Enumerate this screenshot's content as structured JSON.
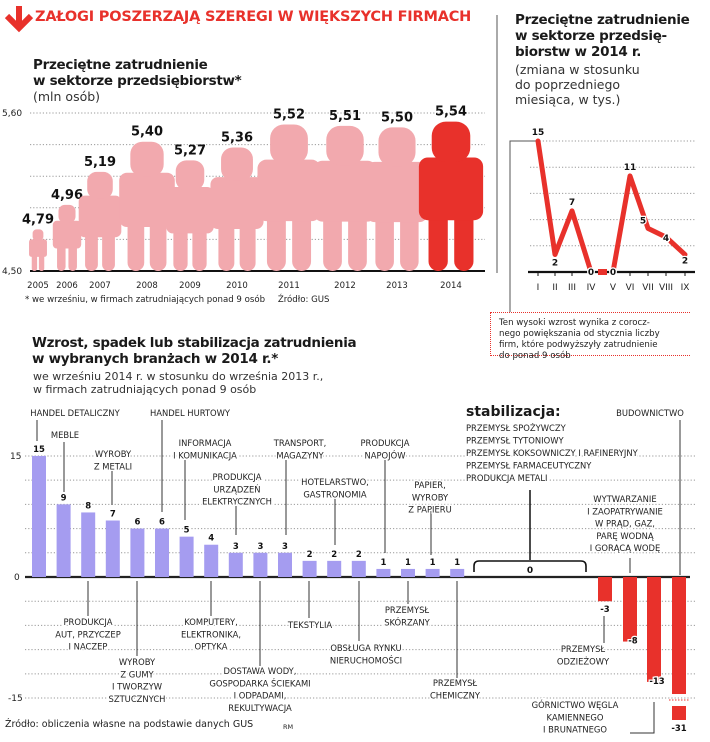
{
  "header": {
    "title": "ZAŁOGI POSZERZAJĄ SZEREGI W WIĘKSZYCH FIRMACH",
    "icon": "arrow-down-icon"
  },
  "colors": {
    "accent": "#e8312b",
    "pink": "#f2a9ae",
    "purple": "#a59cf0",
    "grid": "#999999"
  },
  "chart_data": [
    {
      "type": "bar",
      "title_lines": [
        "Przeciętne zatrudnienie",
        "w sektorze przedsiębiorstw*"
      ],
      "subtitle": "(mln osób)",
      "categories": [
        "2005",
        "2006",
        "2007",
        "2008",
        "2009",
        "2010",
        "2011",
        "2012",
        "2013",
        "2014"
      ],
      "values": [
        4.79,
        4.96,
        5.19,
        5.4,
        5.27,
        5.36,
        5.52,
        5.51,
        5.5,
        5.54
      ],
      "value_labels": [
        "4,79",
        "4,96",
        "5,19",
        "5,40",
        "5,27",
        "5,36",
        "5,52",
        "5,51",
        "5,50",
        "5,54"
      ],
      "ylim": [
        4.5,
        5.6
      ],
      "yticks": [
        "4,50",
        "5,60"
      ],
      "highlight": "2014",
      "grid": true,
      "footnote": "* we wrześniu, w firmach zatrudniających ponad 9 osób",
      "source": "Źródło: GUS"
    },
    {
      "type": "line",
      "title_lines": [
        "Przeciętne zatrudnienie",
        "w sektorze przedsię-",
        "biorstw w 2014 r."
      ],
      "subtitle_lines": [
        "(zmiana w stosunku",
        "do poprzedniego",
        "miesiąca, w tys.)"
      ],
      "categories": [
        "I",
        "II",
        "III",
        "IV",
        "V",
        "VI",
        "VII",
        "VIII",
        "IX"
      ],
      "values": [
        15,
        2,
        7,
        0,
        0,
        11,
        5,
        4,
        2
      ],
      "value_labels": [
        "15",
        "2",
        "7",
        "0",
        "0",
        "11",
        "5",
        "4",
        "2"
      ],
      "ylim": [
        0,
        15
      ],
      "grid": true,
      "annotation_lines": [
        "Ten wysoki wzrost wynika z corocz-",
        "nego powiększania od stycznia liczby",
        "firm, które podwyższyły zatrudnienie",
        "do ponad 9 osób"
      ]
    },
    {
      "type": "bar",
      "title_lines": [
        "Wzrost, spadek lub stabilizacja zatrudnienia",
        "w wybranych branżach w 2014 r.*"
      ],
      "subtitle_lines": [
        "we wrześniu 2014 r. w stosunku do września 2013 r.,",
        "w firmach zatrudniających ponad 9 osób"
      ],
      "yticks": [
        "15",
        "0",
        "-15"
      ],
      "ylim": [
        -15,
        15
      ],
      "grid": true,
      "categories": [
        {
          "lines": [
            "HANDEL DETALICZNY"
          ],
          "value": 15,
          "label": "15"
        },
        {
          "lines": [
            "MEBLE"
          ],
          "value": 9,
          "label": "9"
        },
        {
          "lines": [
            "PRODUKCJA",
            "AUT, PRZYCZEP",
            "I NACZEP"
          ],
          "value": 8,
          "label": "8"
        },
        {
          "lines": [
            "WYROBY",
            "Z METALI"
          ],
          "value": 7,
          "label": "7"
        },
        {
          "lines": [
            "WYROBY",
            "Z GUMY",
            "I TWORZYW",
            "SZTUCZNYCH"
          ],
          "value": 6,
          "label": "6"
        },
        {
          "lines": [
            "HANDEL HURTOWY"
          ],
          "value": 6,
          "label": "6"
        },
        {
          "lines": [
            "INFORMACJA",
            "I KOMUNIKACJA"
          ],
          "value": 5,
          "label": "5"
        },
        {
          "lines": [
            "KOMPUTERY,",
            "ELEKTRONIKA,",
            "OPTYKA"
          ],
          "value": 4,
          "label": "4"
        },
        {
          "lines": [
            "PRODUKCJA",
            "URZĄDZEŃ",
            "ELEKTRYCZNYCH"
          ],
          "value": 3,
          "label": "3"
        },
        {
          "lines": [
            "DOSTAWA WODY,",
            "GOSPODARKA ŚCIEKAMI",
            "I ODPADAMI,",
            "REKULTYWACJA"
          ],
          "value": 3,
          "label": "3"
        },
        {
          "lines": [
            "TRANSPORT,",
            "MAGAZYNY"
          ],
          "value": 3,
          "label": "3"
        },
        {
          "lines": [
            "TEKSTYLIA"
          ],
          "value": 2,
          "label": "2"
        },
        {
          "lines": [
            "HOTELARSTWO,",
            "GASTRONOMIA"
          ],
          "value": 2,
          "label": "2"
        },
        {
          "lines": [
            "OBSŁUGA RYNKU",
            "NIERUCHOMOŚCI"
          ],
          "value": 2,
          "label": "2"
        },
        {
          "lines": [
            "PRODUKCJA",
            "NAPOJÓW"
          ],
          "value": 1,
          "label": "1"
        },
        {
          "lines": [
            "PRZEMYSŁ",
            "SKÓRZANY"
          ],
          "value": 1,
          "label": "1"
        },
        {
          "lines": [
            "PAPIER,",
            "WYROBY",
            "Z PAPIERU"
          ],
          "value": 1,
          "label": "1"
        },
        {
          "lines": [
            "PRZEMYSŁ",
            "CHEMICZNY"
          ],
          "value": 1,
          "label": "1"
        },
        {
          "lines": [
            "PRZEMYSŁ",
            "ODZIEŻOWY"
          ],
          "value": -3,
          "label": "-3"
        },
        {
          "lines": [
            "WYTWARZANIE",
            "I ZAOPATRYWANIE",
            "W PRĄD, GAZ,",
            "PARĘ WODNĄ",
            "I GORĄCĄ WODĘ"
          ],
          "value": -8,
          "label": "-8"
        },
        {
          "lines": [
            "GÓRNICTWO WĘGLA",
            "KAMIENNEGO",
            "I BRUNATNEGO"
          ],
          "value": -13,
          "label": "-13"
        },
        {
          "lines": [
            "BUDOWNICTWO"
          ],
          "value": -31,
          "label": "-31"
        }
      ],
      "stabilization": {
        "label": "stabilizacja:",
        "items": [
          "PRZEMYSŁ SPOŻYWCZY",
          "PRZEMYSŁ TYTONIOWY",
          "PRZEMYSŁ KOKSOWNICZY I RAFINERYJNY",
          "PRZEMYSŁ FARMACEUTYCZNY",
          "PRODUKCJA METALI"
        ],
        "value": 0,
        "value_label": "0"
      },
      "source": "Źródło: obliczenia własne na podstawie danych GUS",
      "credit": "RM"
    }
  ]
}
